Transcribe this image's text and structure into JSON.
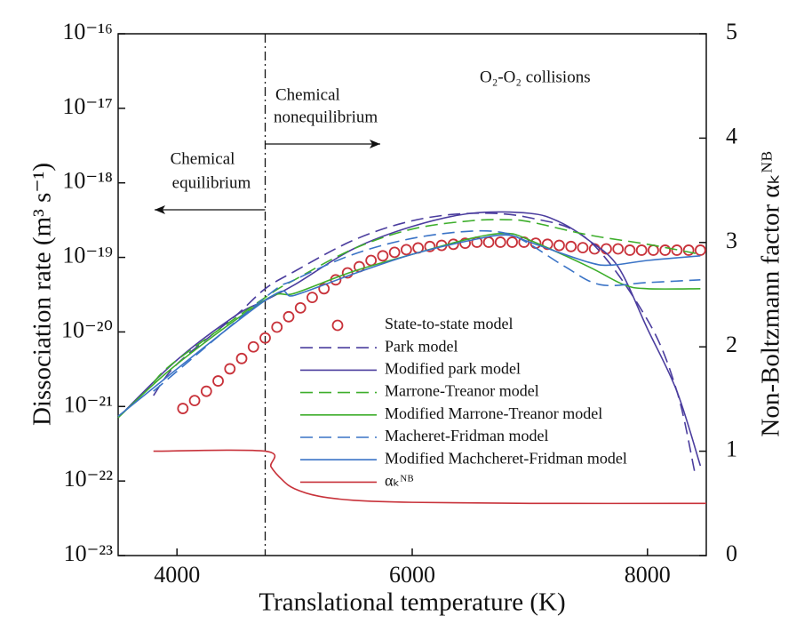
{
  "chart_data": {
    "type": "line",
    "xlabel": "Translational temperature (K)",
    "ylabel": "Dissociation rate (m³ s⁻¹)",
    "y2label": "Non-Boltzmann factor αₖᴺᴮ",
    "xlim": [
      3500,
      8500
    ],
    "xticks": [
      4000,
      6000,
      8000
    ],
    "ylim": [
      1e-23,
      1e-16
    ],
    "ylog": true,
    "yticks": [
      {
        "value": 1e-23,
        "label": "10⁻²³"
      },
      {
        "value": 1e-22,
        "label": "10⁻²²"
      },
      {
        "value": 1e-21,
        "label": "10⁻²¹"
      },
      {
        "value": 1e-20,
        "label": "10⁻²⁰"
      },
      {
        "value": 1e-19,
        "label": "10⁻¹⁹"
      },
      {
        "value": 1e-18,
        "label": "10⁻¹⁸"
      },
      {
        "value": 1e-17,
        "label": "10⁻¹⁷"
      },
      {
        "value": 1e-16,
        "label": "10⁻¹⁶"
      }
    ],
    "y2lim": [
      0,
      5
    ],
    "y2ticks": [
      0,
      1,
      2,
      3,
      4,
      5
    ],
    "grid": false,
    "vline_x": 4750,
    "annotations": [
      "Chemical",
      "nonequilibrium",
      "Chemical",
      "equilibrium",
      "O₂-O₂ collisions"
    ],
    "series": [
      {
        "name": "State-to-state model",
        "color": "#c8323a",
        "style": "markers",
        "x": [
          4050,
          4150,
          4250,
          4350,
          4450,
          4550,
          4650,
          4750,
          4850,
          4950,
          5050,
          5150,
          5250,
          5350,
          5450,
          5550,
          5650,
          5750,
          5850,
          5950,
          6050,
          6150,
          6250,
          6350,
          6450,
          6550,
          6650,
          6750,
          6850,
          6950,
          7050,
          7150,
          7250,
          7350,
          7450,
          7550,
          7650,
          7750,
          7850,
          7950,
          8050,
          8150,
          8250,
          8350,
          8450
        ],
        "values": [
          9.4e-22,
          1.2e-21,
          1.6e-21,
          2.2e-21,
          3.2e-21,
          4.4e-21,
          6.3e-21,
          8.3e-21,
          1.16e-20,
          1.6e-20,
          2.1e-20,
          2.9e-20,
          3.8e-20,
          5e-20,
          6.2e-20,
          7.5e-20,
          9.1e-20,
          1.05e-19,
          1.17e-19,
          1.27e-19,
          1.34e-19,
          1.4e-19,
          1.45e-19,
          1.5e-19,
          1.55e-19,
          1.6e-19,
          1.6e-19,
          1.6e-19,
          1.6e-19,
          1.6e-19,
          1.55e-19,
          1.5e-19,
          1.45e-19,
          1.4e-19,
          1.35e-19,
          1.3e-19,
          1.3e-19,
          1.3e-19,
          1.25e-19,
          1.25e-19,
          1.25e-19,
          1.25e-19,
          1.25e-19,
          1.25e-19,
          1.25e-19
        ]
      },
      {
        "name": "Park model",
        "color": "#4b3d9e",
        "style": "dashed",
        "x": [
          3800,
          4000,
          4500,
          4750,
          5000,
          5500,
          6000,
          6500,
          7000,
          7500,
          8000,
          8250,
          8400
        ],
        "values": [
          1.4e-21,
          3.7e-21,
          1.66e-20,
          3.8e-20,
          6.5e-20,
          1.7e-19,
          3.1e-19,
          3.9e-19,
          3.4e-19,
          1.7e-19,
          1.45e-20,
          1.6e-21,
          1.36e-22
        ]
      },
      {
        "name": "Modified park model",
        "color": "#4b3d9e",
        "style": "solid",
        "x": [
          3500,
          4000,
          4500,
          4750,
          5000,
          5500,
          6000,
          6500,
          7000,
          7250,
          7500,
          7750,
          8000,
          8250,
          8450
        ],
        "values": [
          7.1e-22,
          4.2e-21,
          1.66e-20,
          2.65e-20,
          4.3e-20,
          1.3e-19,
          2.6e-19,
          3.9e-19,
          3.9e-19,
          3e-19,
          1.7e-19,
          7.5e-20,
          1.1e-20,
          1.6e-21,
          1.6e-22
        ]
      },
      {
        "name": "Marrone-Treanor model",
        "color": "#3dae2b",
        "style": "dashed",
        "x": [
          3800,
          4000,
          4750,
          5000,
          5500,
          6000,
          6500,
          6800,
          7000,
          7500,
          8000,
          8450
        ],
        "values": [
          2.1e-21,
          4.2e-21,
          2.9e-20,
          5e-20,
          1.3e-19,
          2.4e-19,
          3.1e-19,
          3.2e-19,
          3e-19,
          2e-19,
          1.5e-19,
          1.1e-19
        ]
      },
      {
        "name": "Modified Marrone-Treanor model",
        "color": "#3dae2b",
        "style": "solid",
        "x": [
          3500,
          4000,
          4750,
          5000,
          5500,
          6000,
          6500,
          6800,
          7000,
          7500,
          7800,
          8000,
          8450
        ],
        "values": [
          7.1e-22,
          3.7e-21,
          2.7e-20,
          3.3e-20,
          6.5e-20,
          1.1e-19,
          1.8e-19,
          2.1e-19,
          1.7e-19,
          7.5e-20,
          4.3e-20,
          3.8e-20,
          3.8e-20
        ]
      },
      {
        "name": "Macheret-Fridman model",
        "color": "#3a73c6",
        "style": "dashed",
        "x": [
          3800,
          4750,
          5000,
          5500,
          6000,
          6500,
          6800,
          7000,
          7300,
          7600,
          8000,
          8450
        ],
        "values": [
          1.6e-21,
          2.9e-20,
          5e-20,
          1.1e-19,
          1.8e-19,
          2.25e-19,
          2.1e-19,
          1.5e-19,
          7.5e-20,
          4.3e-20,
          4.6e-20,
          5e-20
        ]
      },
      {
        "name": "Modified Machcheret-Fridman model",
        "color": "#3a73c6",
        "style": "solid",
        "x": [
          3500,
          4750,
          5000,
          5500,
          6000,
          6500,
          6800,
          7000,
          7500,
          7700,
          8000,
          8450
        ],
        "values": [
          7.4e-22,
          2.65e-20,
          3.1e-20,
          6e-20,
          1.1e-19,
          1.7e-19,
          2e-19,
          1.6e-19,
          8.6e-20,
          7.9e-20,
          9.1e-20,
          1.05e-19
        ]
      },
      {
        "name": "αₖᴺᴮ",
        "color": "#c8323a",
        "style": "solid",
        "axis": "y2",
        "x": [
          3800,
          4750,
          4800,
          4900,
          5000,
          5200,
          5500,
          6000,
          7000,
          8500
        ],
        "values": [
          1.0,
          1.0,
          0.85,
          0.72,
          0.64,
          0.57,
          0.53,
          0.51,
          0.5,
          0.5
        ]
      }
    ]
  }
}
